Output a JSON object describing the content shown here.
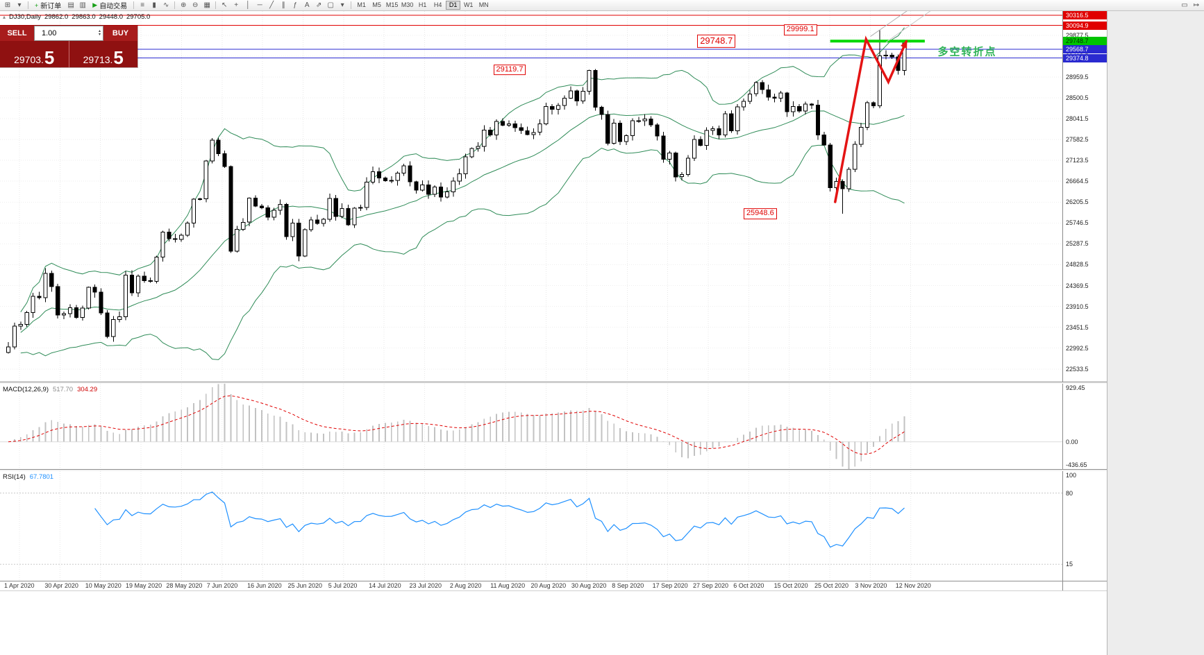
{
  "toolbar": {
    "items_left": [
      {
        "t": "i",
        "n": "new-chart-icon",
        "g": "⊞"
      },
      {
        "t": "i",
        "n": "chart-profiles-icon",
        "g": "▾"
      },
      {
        "t": "s"
      },
      {
        "t": "b",
        "n": "new-order-button",
        "g": "+",
        "gc": "#18a018",
        "l": "新订单"
      },
      {
        "t": "i",
        "n": "market-watch-icon",
        "g": "▤"
      },
      {
        "t": "i",
        "n": "navigator-icon",
        "g": "▥"
      },
      {
        "t": "b",
        "n": "auto-trading-button",
        "g": "▶",
        "gc": "#18a018",
        "l": "自动交易"
      },
      {
        "t": "s"
      },
      {
        "t": "i",
        "n": "bar-chart-icon",
        "g": "≡"
      },
      {
        "t": "i",
        "n": "candlestick-chart-icon",
        "g": "▮"
      },
      {
        "t": "i",
        "n": "line-chart-icon",
        "g": "∿"
      },
      {
        "t": "s"
      },
      {
        "t": "i",
        "n": "zoom-in-icon",
        "g": "⊕"
      },
      {
        "t": "i",
        "n": "zoom-out-icon",
        "g": "⊖"
      },
      {
        "t": "i",
        "n": "tile-windows-icon",
        "g": "▦"
      },
      {
        "t": "s"
      },
      {
        "t": "i",
        "n": "cursor-icon",
        "g": "↖"
      },
      {
        "t": "i",
        "n": "crosshair-icon",
        "g": "+"
      },
      {
        "t": "i",
        "n": "vertical-line-icon",
        "g": "│"
      },
      {
        "t": "i",
        "n": "horizontal-line-icon",
        "g": "─"
      },
      {
        "t": "i",
        "n": "trendline-icon",
        "g": "╱"
      },
      {
        "t": "i",
        "n": "equidistant-channel-icon",
        "g": "∥"
      },
      {
        "t": "i",
        "n": "fibonacci-icon",
        "g": "ƒ"
      },
      {
        "t": "i",
        "n": "text-label-icon",
        "g": "A"
      },
      {
        "t": "i",
        "n": "arrow-object-icon",
        "g": "⇗"
      },
      {
        "t": "i",
        "n": "shapes-icon",
        "g": "▢"
      },
      {
        "t": "i",
        "n": "objects-dropdown-icon",
        "g": "▾"
      },
      {
        "t": "s"
      }
    ],
    "timeframes": [
      "M1",
      "M5",
      "M15",
      "M30",
      "H1",
      "H4",
      "D1",
      "W1",
      "MN"
    ],
    "active_timeframe": "D1",
    "items_right": [
      {
        "t": "i",
        "n": "chart-shift-icon",
        "g": "▭"
      },
      {
        "t": "i",
        "n": "auto-scroll-icon",
        "g": "↦"
      }
    ]
  },
  "chart_header": {
    "symbol": "DJ30,Daily",
    "open": "29862.0",
    "high": "29863.0",
    "low": "29448.0",
    "close": "29705.0"
  },
  "trade_panel": {
    "sell_label": "SELL",
    "buy_label": "BUY",
    "volume": "1.00",
    "sell_price": "29703.5",
    "buy_price": "29713.5",
    "bg": "#8f1111",
    "button_bg": "#a81c1c"
  },
  "chart_data": {
    "type": "candlestick",
    "symbol": "DJ30",
    "timeframe": "Daily",
    "first_open": 22900,
    "closes": [
      23019,
      23476,
      23515,
      23775,
      24134,
      24102,
      24634,
      24346,
      23724,
      23749,
      23883,
      23665,
      23876,
      24331,
      24222,
      23765,
      23248,
      23625,
      23685,
      24597,
      24207,
      24576,
      24474,
      24465,
      24995,
      25548,
      25401,
      25383,
      25475,
      25743,
      26270,
      26282,
      27111,
      27572,
      27272,
      26990,
      25128,
      25605,
      25763,
      26290,
      26120,
      26080,
      25871,
      26025,
      26156,
      25446,
      25746,
      25016,
      25596,
      25813,
      25735,
      25827,
      26287,
      25890,
      26067,
      25706,
      26075,
      26086,
      26643,
      26870,
      26735,
      26672,
      26681,
      26840,
      27006,
      26652,
      26470,
      26584,
      26379,
      26539,
      26313,
      26428,
      26664,
      26828,
      27201,
      27387,
      27433,
      27791,
      27686,
      27977,
      27897,
      27931,
      27844,
      27778,
      27693,
      27740,
      27930,
      28308,
      28248,
      28332,
      28492,
      28654,
      28430,
      28646,
      29101,
      28293,
      28133,
      27501,
      27940,
      27535,
      27666,
      27993,
      27996,
      28032,
      27902,
      27657,
      27148,
      27288,
      26763,
      26815,
      27174,
      27584,
      27453,
      27782,
      27817,
      27683,
      28149,
      27773,
      28303,
      28426,
      28587,
      28838,
      28679,
      28514,
      28494,
      28606,
      28195,
      28308,
      28211,
      28364,
      28336,
      27685,
      27463,
      26520,
      26659,
      26502,
      26925,
      27480,
      27848,
      28390,
      28323,
      29420,
      29440,
      29398,
      29100,
      29705
    ],
    "high_overrides": {
      "94": 29119.7,
      "141": 29999.1
    },
    "low_overrides": {
      "135": 25948.6
    },
    "bollinger": {
      "period": 20,
      "deviation": 2,
      "color": "#2e8b57"
    },
    "candle_up_color": "#ffffff",
    "candle_down_color": "#000000",
    "price_axis": {
      "tick_start": 29877.5,
      "tick_step": 459.0,
      "tick_count": 17,
      "markers": [
        {
          "price": 30316.5,
          "label": "30316.5",
          "bg": "#e00000",
          "fg": "#ffffff"
        },
        {
          "price": 30094.9,
          "label": "30094.9",
          "bg": "#e00000",
          "fg": "#ffffff"
        },
        {
          "price": 29748.7,
          "label": "29748.7",
          "bg": "#00c400",
          "fg": "#003300"
        },
        {
          "price": 29568.7,
          "label": "29568.7",
          "bg": "#2a2ad0",
          "fg": "#ffffff"
        },
        {
          "price": 29374.8,
          "label": "29374.8",
          "bg": "#2a2ad0",
          "fg": "#ffffff"
        }
      ]
    },
    "hlines": [
      {
        "price": 30316.5,
        "color": "#e00000",
        "w": 1
      },
      {
        "price": 30094.9,
        "color": "#e00000",
        "w": 1
      },
      {
        "price": 29568.7,
        "color": "#2a2ad0",
        "w": 1
      },
      {
        "price": 29374.8,
        "color": "#2a2ad0",
        "w": 1
      }
    ],
    "green_line": {
      "price": 29748.7,
      "i1": 133,
      "i2": 148.3,
      "color": "#00d800",
      "width": 4
    },
    "trendlines": [
      {
        "p1": [
          139.5,
          29850
        ],
        "p2": [
          149.5,
          30800
        ],
        "color": "#b0b0b0"
      },
      {
        "p1": [
          142.0,
          29720
        ],
        "p2": [
          152.0,
          30680
        ],
        "color": "#c8c8c8"
      }
    ],
    "zigzag": {
      "color": "#e41414",
      "width": 3.5,
      "points": [
        [
          133.8,
          26210
        ],
        [
          138.8,
          29790
        ],
        [
          142.4,
          28850
        ],
        [
          145.3,
          29740
        ]
      ]
    },
    "callouts": [
      {
        "text": "29999.1",
        "i": 132.0,
        "price": 29999,
        "size": 11
      },
      {
        "text": "29748.7",
        "i": 118.0,
        "price": 29745,
        "size": 13
      },
      {
        "text": "29119.7",
        "i": 85.0,
        "price": 29115,
        "size": 11
      },
      {
        "text": "25948.6",
        "i": 125.5,
        "price": 25950,
        "size": 11
      }
    ],
    "annotation": {
      "text": "多空转折点",
      "i": 150.4,
      "price": 29530,
      "color": "#2fb457",
      "size": 15
    },
    "x_axis_labels": [
      "1 Apr 2020",
      "30 Apr 2020",
      "10 May 2020",
      "19 May 2020",
      "28 May 2020",
      "7 Jun 2020",
      "16 Jun 2020",
      "25 Jun 2020",
      "5 Jul 2020",
      "14 Jul 2020",
      "23 Jul 2020",
      "2 Aug 2020",
      "11 Aug 2020",
      "20 Aug 2020",
      "30 Aug 2020",
      "8 Sep 2020",
      "17 Sep 2020",
      "27 Sep 2020",
      "6 Oct 2020",
      "15 Oct 2020",
      "25 Oct 2020",
      "3 Nov 2020",
      "12 Nov 2020"
    ]
  },
  "macd": {
    "name": "MACD(12,26,9)",
    "value_main": "517.70",
    "value_signal": "304.29",
    "scale_top": "929.45",
    "scale_zero": "0.00",
    "scale_bottom": "-436.65",
    "histogram_color": "#c2c2c2",
    "signal_color": "#e00000"
  },
  "rsi": {
    "name": "RSI(14)",
    "value": "67.7801",
    "scale_top": "100",
    "levels": [
      80,
      15
    ],
    "line_color": "#1e90ff"
  }
}
